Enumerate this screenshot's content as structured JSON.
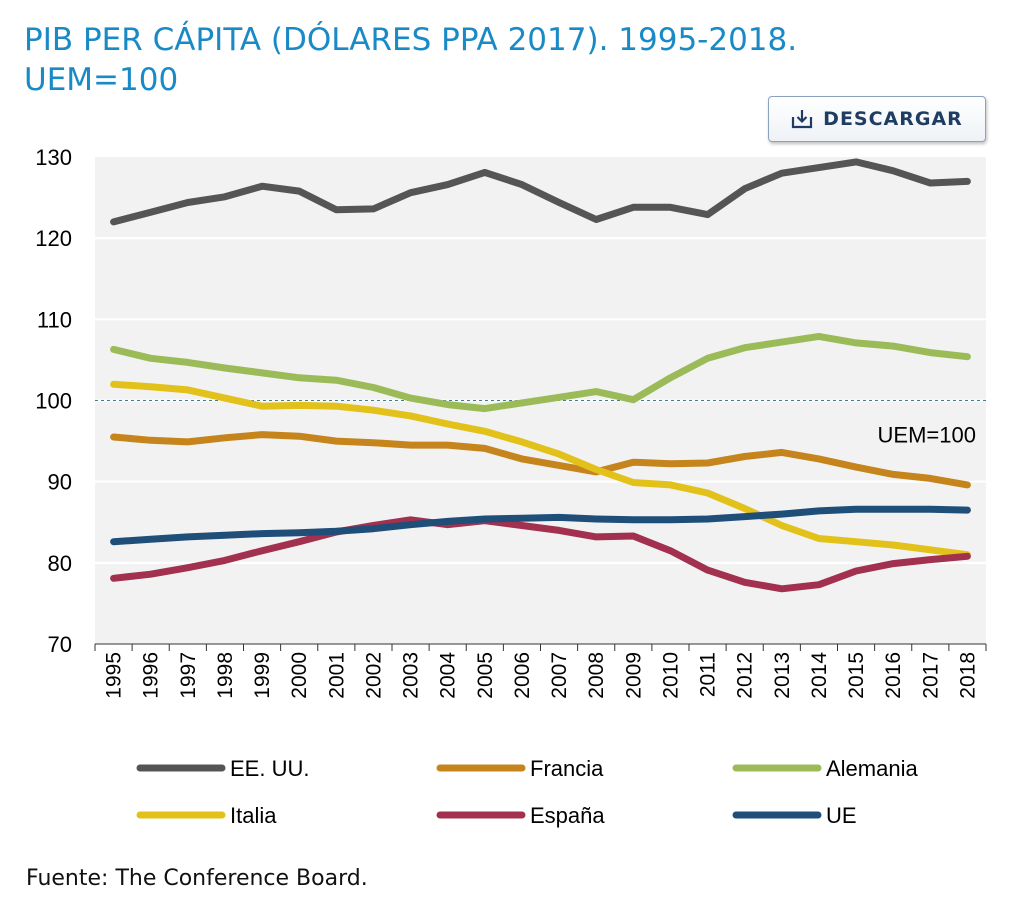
{
  "page": {
    "title_line1": "PIB PER CÁPITA (DÓLARES PPA 2017). 1995-2018.",
    "title_line2": "UEM=100",
    "download_label": "DESCARGAR",
    "download_icon": "download-icon",
    "source": "Fuente: The Conference Board."
  },
  "chart_data": {
    "type": "line",
    "title": "PIB PER CÁPITA (DÓLARES PPA 2017). 1995-2018. UEM=100",
    "xlabel": "",
    "ylabel": "",
    "x": [
      "1995",
      "1996",
      "1997",
      "1998",
      "1999",
      "2000",
      "2001",
      "2002",
      "2003",
      "2004",
      "2005",
      "2006",
      "2007",
      "2008",
      "2009",
      "2010",
      "2011",
      "2012",
      "2013",
      "2014",
      "2015",
      "2016",
      "2017",
      "2018"
    ],
    "ylim": [
      70,
      130
    ],
    "yticks": [
      70,
      80,
      90,
      100,
      110,
      120,
      130
    ],
    "grid": true,
    "reference_line": {
      "value": 100,
      "label": "UEM=100"
    },
    "legend_position": "bottom",
    "series": [
      {
        "name": "EE. UU.",
        "color": "#555555",
        "values": [
          122.0,
          123.2,
          124.4,
          125.1,
          126.4,
          125.8,
          123.5,
          123.6,
          125.6,
          126.6,
          128.1,
          126.6,
          124.4,
          122.3,
          123.8,
          123.8,
          122.9,
          126.1,
          128.0,
          128.7,
          129.4,
          128.3,
          126.8,
          127.0
        ]
      },
      {
        "name": "Francia",
        "color": "#c5851c",
        "values": [
          95.5,
          95.1,
          94.9,
          95.4,
          95.8,
          95.6,
          95.0,
          94.8,
          94.5,
          94.5,
          94.1,
          92.8,
          92.0,
          91.2,
          92.4,
          92.2,
          92.3,
          93.1,
          93.6,
          92.8,
          91.8,
          90.9,
          90.4,
          89.6
        ]
      },
      {
        "name": "Alemania",
        "color": "#9bbb59",
        "values": [
          106.3,
          105.2,
          104.7,
          104.0,
          103.4,
          102.8,
          102.5,
          101.6,
          100.3,
          99.5,
          99.0,
          99.7,
          100.4,
          101.1,
          100.1,
          102.8,
          105.2,
          106.5,
          107.2,
          107.9,
          107.1,
          106.7,
          105.9,
          105.4
        ]
      },
      {
        "name": "Italia",
        "color": "#e2c21a",
        "values": [
          102.0,
          101.7,
          101.3,
          100.3,
          99.3,
          99.4,
          99.3,
          98.8,
          98.1,
          97.1,
          96.2,
          94.9,
          93.4,
          91.5,
          89.9,
          89.6,
          88.6,
          86.7,
          84.6,
          83.0,
          82.6,
          82.2,
          81.6,
          81.0
        ]
      },
      {
        "name": "España",
        "color": "#a2304f",
        "values": [
          78.1,
          78.6,
          79.4,
          80.3,
          81.5,
          82.6,
          83.8,
          84.6,
          85.3,
          84.7,
          85.2,
          84.6,
          84.0,
          83.2,
          83.3,
          81.5,
          79.1,
          77.6,
          76.8,
          77.3,
          79.0,
          79.9,
          80.4,
          80.8
        ]
      },
      {
        "name": "UE",
        "color": "#1f4e79",
        "values": [
          82.6,
          82.9,
          83.2,
          83.4,
          83.6,
          83.7,
          83.9,
          84.2,
          84.7,
          85.1,
          85.4,
          85.5,
          85.6,
          85.4,
          85.3,
          85.3,
          85.4,
          85.7,
          86.0,
          86.4,
          86.6,
          86.6,
          86.6,
          86.5
        ]
      }
    ]
  }
}
